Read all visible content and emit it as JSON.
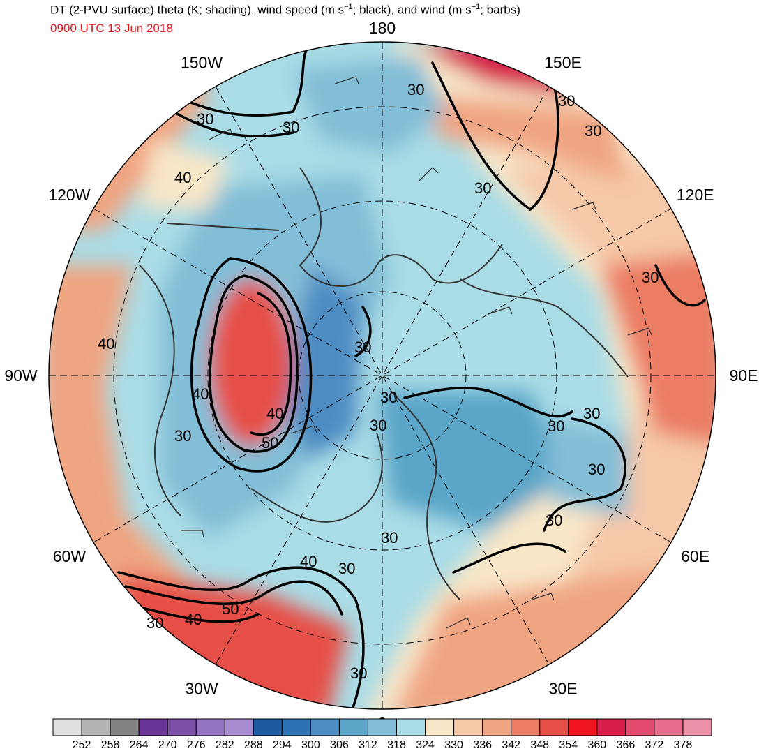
{
  "header": {
    "title_a": "DT (2-PVU surface) theta (K; shading), wind speed (m s",
    "title_b": "; black), and wind (m s",
    "title_c": "; barbs)",
    "sup": "−1",
    "valid_time": "0900 UTC 13 Jun 2018"
  },
  "map": {
    "projection": "north-polar-stereographic",
    "longitude_labels": [
      {
        "text": "180",
        "lon": 180
      },
      {
        "text": "150E",
        "lon": 150
      },
      {
        "text": "120E",
        "lon": 120
      },
      {
        "text": "90E",
        "lon": 90
      },
      {
        "text": "60E",
        "lon": 60
      },
      {
        "text": "30E",
        "lon": 30
      },
      {
        "text": "0",
        "lon": 0
      },
      {
        "text": "30W",
        "lon": -30
      },
      {
        "text": "60W",
        "lon": -60
      },
      {
        "text": "90W",
        "lon": -90
      },
      {
        "text": "120W",
        "lon": -120
      },
      {
        "text": "150W",
        "lon": -150
      }
    ],
    "contour_labels": [
      "30",
      "30",
      "30",
      "30",
      "30",
      "30",
      "30",
      "30",
      "30",
      "30",
      "30",
      "30",
      "30",
      "30",
      "30",
      "30",
      "40",
      "40",
      "40",
      "40",
      "40",
      "40",
      "50",
      "50"
    ]
  },
  "colorbar": {
    "colors": [
      "#e0e0e0",
      "#b4b4b4",
      "#828282",
      "#6a3596",
      "#7d50a8",
      "#9674c4",
      "#a98bd2",
      "#1e5aa0",
      "#2d73b4",
      "#4d8cc3",
      "#5aa5c8",
      "#82bed7",
      "#aadce6",
      "#f8e6c8",
      "#f5c8a8",
      "#f0a582",
      "#eb7d64",
      "#e65046",
      "#f0141e",
      "#d71e4b",
      "#e14b6e",
      "#e66e8c",
      "#eb91aa"
    ],
    "ticks": [
      "252",
      "258",
      "264",
      "270",
      "276",
      "282",
      "288",
      "294",
      "300",
      "306",
      "312",
      "318",
      "324",
      "330",
      "336",
      "342",
      "348",
      "354",
      "360",
      "366",
      "372",
      "378"
    ]
  }
}
